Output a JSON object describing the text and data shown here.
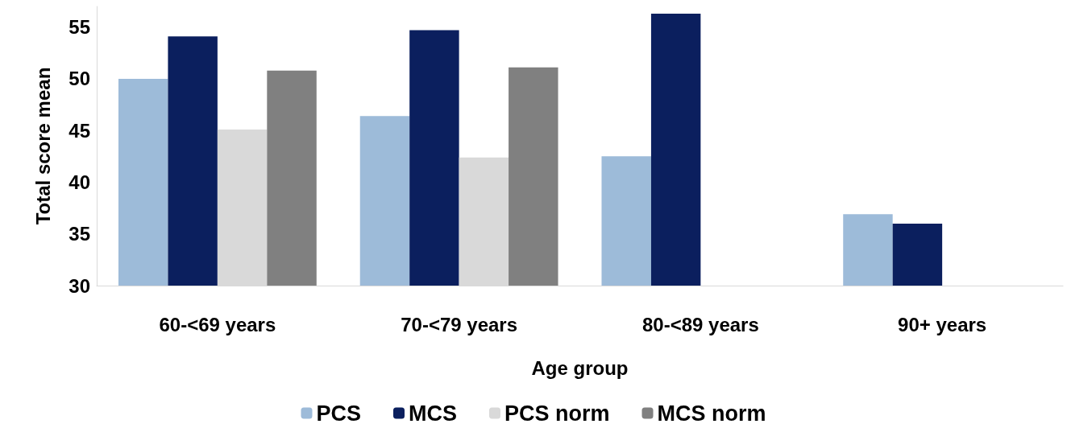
{
  "chart_data": {
    "type": "bar",
    "xlabel": "Age group",
    "ylabel": "Total score mean",
    "categories": [
      "60-<69 years",
      "70-<79 years",
      "80-<89 years",
      "90+ years"
    ],
    "series": [
      {
        "name": "PCS",
        "color": "#9dbbd9",
        "values": [
          50.0,
          46.4,
          42.5,
          36.9
        ]
      },
      {
        "name": "MCS",
        "color": "#0b1f5e",
        "values": [
          54.1,
          54.7,
          56.3,
          36.0
        ]
      },
      {
        "name": "PCS norm",
        "color": "#d9d9d9",
        "values": [
          45.1,
          42.4,
          null,
          null
        ]
      },
      {
        "name": "MCS norm",
        "color": "#808080",
        "values": [
          50.8,
          51.1,
          null,
          null
        ]
      }
    ],
    "ylim": [
      30,
      57
    ],
    "yticks": [
      30,
      35,
      40,
      45,
      50,
      55
    ],
    "grid": false,
    "legend": "bottom"
  }
}
